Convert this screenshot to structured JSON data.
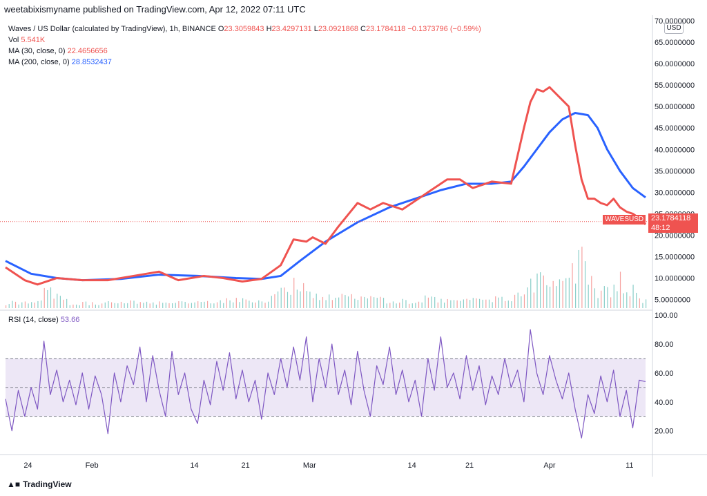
{
  "header": {
    "published": "weetabixismyname published on TradingView.com, Apr 12, 2022 07:11 UTC"
  },
  "legend": {
    "title": "Waves / US Dollar (calculated by TradingView), 1h, BINANCE",
    "o_label": "O",
    "o_value": "23.3059843",
    "h_label": "H",
    "h_value": "23.4297131",
    "l_label": "L",
    "l_value": "23.0921868",
    "c_label": "C",
    "c_value": "23.1784118",
    "change": "−0.1373796 (−0.59%)",
    "vol_label": "Vol",
    "vol_value": "5.541K",
    "ma30_label": "MA (30, close, 0)",
    "ma30_value": "22.4656656",
    "ma200_label": "MA (200, close, 0)",
    "ma200_value": "28.8532437"
  },
  "rsi_legend": {
    "label": "RSI (14, close)",
    "value": "53.66"
  },
  "currency": "USD",
  "last_price": {
    "symbol": "WAVESUSD",
    "price": "23.1784118",
    "countdown": "48:12"
  },
  "footer": {
    "brand": "TradingView"
  },
  "colors": {
    "ma30": "#ef5350",
    "ma200": "#2962ff",
    "rsi": "#7e57c2",
    "vol_up": "#26a69a",
    "vol_down": "#ef5350",
    "rsi_band": "#ede7f6"
  },
  "chart_data": [
    {
      "type": "line",
      "title": "",
      "x_ticks": [
        "24",
        "Feb",
        "14",
        "21",
        "Mar",
        "14",
        "21",
        "Apr",
        "11"
      ],
      "y_ticks": [
        "5.0000000",
        "10.0000000",
        "15.0000000",
        "20.0000000",
        "25.0000000",
        "30.0000000",
        "35.0000000",
        "40.0000000",
        "45.0000000",
        "50.0000000",
        "55.0000000",
        "60.0000000",
        "65.0000000",
        "70.0000000"
      ],
      "ylim": [
        3,
        70
      ],
      "series": [
        {
          "name": "MA (30, close, 0)",
          "t": [
            0,
            3,
            5,
            8,
            12,
            16,
            20,
            24,
            27,
            31,
            34,
            37,
            40,
            43,
            45,
            47,
            48,
            50,
            52,
            55,
            57,
            59,
            62,
            65,
            67,
            69,
            71,
            73,
            76,
            79,
            81,
            82,
            83,
            84,
            85,
            86,
            88,
            89,
            90,
            91,
            92,
            93,
            94,
            95,
            96,
            97,
            98,
            99,
            100
          ],
          "values": [
            12.5,
            9.5,
            8.5,
            10,
            9.5,
            9.5,
            10.5,
            11.5,
            9.5,
            10.5,
            10,
            9.2,
            9.8,
            13,
            19,
            18.5,
            19.5,
            18,
            22,
            27.5,
            26,
            27.5,
            26,
            29,
            31,
            33,
            33,
            31,
            32.5,
            32,
            45,
            51,
            54,
            53.5,
            54.5,
            53,
            50,
            41,
            33,
            28.5,
            28.5,
            27.5,
            27,
            28.5,
            26.5,
            25.5,
            25,
            24,
            22.5
          ]
        },
        {
          "name": "MA (200, close, 0)",
          "t": [
            0,
            4,
            8,
            12,
            18,
            24,
            30,
            36,
            40,
            43,
            46,
            50,
            55,
            60,
            64,
            68,
            72,
            76,
            79,
            81,
            83,
            85,
            87,
            89,
            91,
            92.5,
            94,
            96,
            98,
            100
          ],
          "values": [
            14,
            11,
            10,
            9.5,
            9.8,
            10.8,
            10.5,
            10,
            9.8,
            10.5,
            14,
            18.5,
            23,
            26.5,
            28.5,
            30.5,
            32,
            32,
            32.5,
            36,
            40,
            44,
            47,
            48.5,
            48,
            45,
            40,
            35,
            31,
            28.8
          ]
        }
      ]
    },
    {
      "type": "line",
      "title": "",
      "x_ticks": [
        "24",
        "Feb",
        "14",
        "21",
        "Mar",
        "14",
        "21",
        "Apr",
        "11"
      ],
      "y_ticks": [
        "20.00",
        "40.00",
        "60.00",
        "80.00",
        "100.00"
      ],
      "ylim": [
        5,
        102
      ],
      "bands": [
        30,
        50,
        70
      ],
      "series": [
        {
          "name": "RSI (14, close)",
          "t": [
            0,
            1,
            2,
            3,
            4,
            5,
            6,
            7,
            8,
            9,
            10,
            11,
            12,
            13,
            14,
            15,
            16,
            17,
            18,
            19,
            20,
            21,
            22,
            23,
            24,
            25,
            26,
            27,
            28,
            29,
            30,
            31,
            32,
            33,
            34,
            35,
            36,
            37,
            38,
            39,
            40,
            41,
            42,
            43,
            44,
            45,
            46,
            47,
            48,
            49,
            50,
            51,
            52,
            53,
            54,
            55,
            56,
            57,
            58,
            59,
            60,
            61,
            62,
            63,
            64,
            65,
            66,
            67,
            68,
            69,
            70,
            71,
            72,
            73,
            74,
            75,
            76,
            77,
            78,
            79,
            80,
            81,
            82,
            83,
            84,
            85,
            86,
            87,
            88,
            89,
            90,
            91,
            92,
            93,
            94,
            95,
            96,
            97,
            98,
            99,
            100
          ],
          "values": [
            42,
            20,
            48,
            30,
            50,
            35,
            82,
            45,
            62,
            40,
            55,
            38,
            60,
            35,
            58,
            45,
            18,
            60,
            40,
            65,
            52,
            78,
            40,
            72,
            48,
            30,
            75,
            45,
            60,
            35,
            25,
            55,
            38,
            68,
            48,
            74,
            42,
            62,
            40,
            55,
            28,
            60,
            45,
            70,
            50,
            78,
            55,
            85,
            40,
            70,
            50,
            80,
            45,
            62,
            38,
            75,
            48,
            30,
            65,
            52,
            78,
            45,
            62,
            40,
            55,
            30,
            70,
            48,
            85,
            50,
            60,
            42,
            72,
            48,
            65,
            38,
            58,
            45,
            70,
            50,
            62,
            40,
            90,
            60,
            45,
            72,
            55,
            42,
            60,
            35,
            15,
            45,
            32,
            58,
            40,
            62,
            30,
            48,
            22,
            55,
            54
          ]
        }
      ]
    },
    {
      "type": "bar",
      "title": "",
      "note": "volume histogram",
      "t": [
        0,
        5,
        7,
        7.5,
        10,
        15,
        20,
        25,
        30,
        35,
        40,
        44,
        45,
        47,
        50,
        52,
        55,
        57,
        60,
        63,
        66,
        70,
        74,
        78,
        81,
        82,
        83,
        85,
        87,
        88,
        89,
        90,
        91,
        92,
        93,
        95,
        96,
        97,
        98,
        99,
        100
      ],
      "values": [
        2,
        3,
        12,
        6,
        2,
        2,
        2.5,
        2,
        2,
        3,
        3,
        8,
        10,
        7,
        4,
        6,
        5,
        4,
        3,
        3,
        4,
        3,
        3,
        4,
        6,
        9,
        12,
        8,
        10,
        12,
        16,
        20,
        14,
        8,
        6,
        8,
        11,
        5,
        7,
        4,
        3
      ]
    }
  ]
}
